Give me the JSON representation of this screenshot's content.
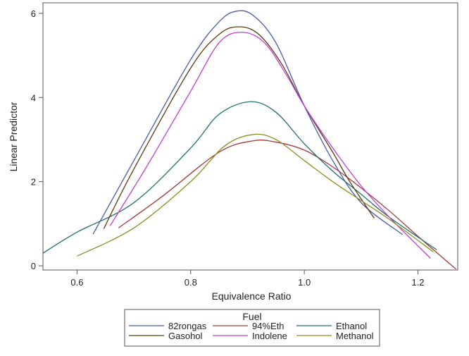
{
  "chart_data": {
    "type": "line",
    "xlabel": "Equivalence Ratio",
    "ylabel": "Linear Predictor",
    "xlim": [
      0.54,
      1.27
    ],
    "ylim": [
      -0.1,
      6.25
    ],
    "xticks": [
      "0.6",
      "0.8",
      "1.0",
      "1.2"
    ],
    "yticks": [
      "0",
      "2",
      "4",
      "6"
    ],
    "legend": {
      "title": "Fuel",
      "placement": "bottom"
    },
    "series": [
      {
        "name": "82rongas",
        "color": "#4a5aa8",
        "x": [
          0.628,
          0.7,
          0.8,
          0.85,
          0.88,
          0.91,
          0.95,
          1.0,
          1.05,
          1.1,
          1.173
        ],
        "y": [
          0.75,
          2.5,
          4.9,
          5.8,
          6.05,
          5.95,
          5.3,
          3.8,
          2.5,
          1.5,
          0.74
        ]
      },
      {
        "name": "94%Eth",
        "color": "#a33a3a",
        "x": [
          0.673,
          0.75,
          0.85,
          0.91,
          0.95,
          1.0,
          1.05,
          1.1,
          1.15,
          1.2,
          1.267
        ],
        "y": [
          0.9,
          1.65,
          2.7,
          2.97,
          2.94,
          2.75,
          2.35,
          1.85,
          1.3,
          0.7,
          -0.08
        ]
      },
      {
        "name": "Ethanol",
        "color": "#1f6e6e",
        "x": [
          0.54,
          0.6,
          0.7,
          0.8,
          0.85,
          0.905,
          0.95,
          1.0,
          1.05,
          1.1,
          1.15,
          1.233
        ],
        "y": [
          0.3,
          0.8,
          1.5,
          2.8,
          3.6,
          3.9,
          3.65,
          2.9,
          2.25,
          1.7,
          1.15,
          0.38
        ]
      },
      {
        "name": "Gasohol",
        "color": "#5c3a12",
        "x": [
          0.647,
          0.7,
          0.8,
          0.85,
          0.885,
          0.92,
          0.96,
          1.0,
          1.05,
          1.08,
          1.123
        ],
        "y": [
          0.88,
          2.3,
          4.7,
          5.5,
          5.68,
          5.5,
          4.8,
          3.8,
          2.7,
          2.0,
          1.13
        ]
      },
      {
        "name": "Indolene",
        "color": "#bf3fd6",
        "x": [
          0.658,
          0.72,
          0.8,
          0.85,
          0.89,
          0.93,
          0.97,
          1.0,
          1.05,
          1.1,
          1.15,
          1.222
        ],
        "y": [
          0.95,
          2.3,
          4.15,
          5.3,
          5.55,
          5.3,
          4.5,
          3.8,
          2.8,
          1.9,
          1.15,
          0.18
        ]
      },
      {
        "name": "Methanol",
        "color": "#8d8d1f",
        "x": [
          0.6,
          0.7,
          0.8,
          0.86,
          0.91,
          0.95,
          1.0,
          1.05,
          1.1,
          1.15,
          1.227
        ],
        "y": [
          0.23,
          0.9,
          2.0,
          2.85,
          3.12,
          3.0,
          2.5,
          2.0,
          1.55,
          1.1,
          0.33
        ]
      }
    ]
  }
}
